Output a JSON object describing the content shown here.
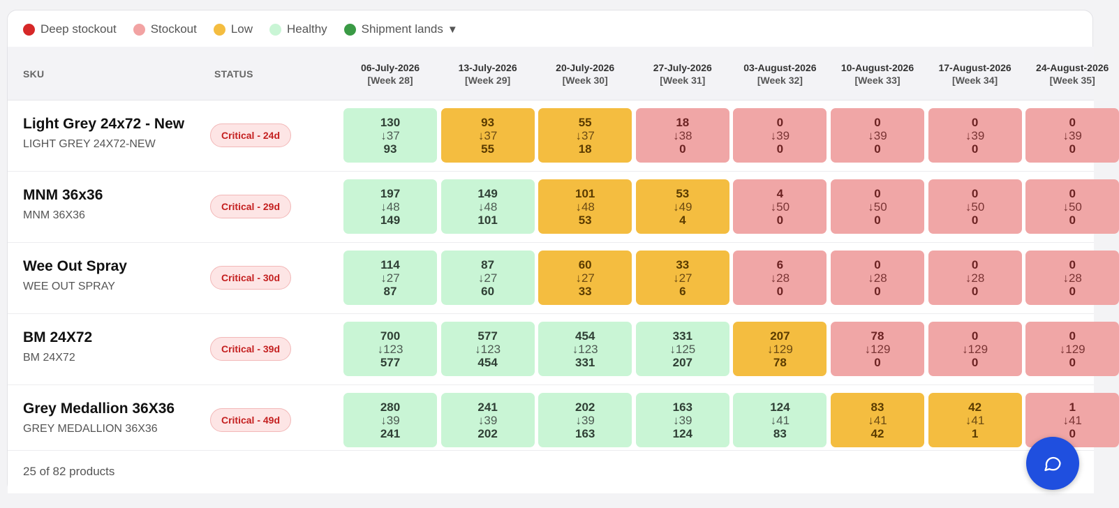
{
  "legend": [
    {
      "label": "Deep stockout",
      "color": "#d62828"
    },
    {
      "label": "Stockout",
      "color": "#f2a3a3"
    },
    {
      "label": "Low",
      "color": "#f4bd40"
    },
    {
      "label": "Healthy",
      "color": "#c9f5d5"
    },
    {
      "label": "Shipment lands",
      "color": "#3a9a45",
      "marker": "▼"
    }
  ],
  "columns": {
    "sku": "SKU",
    "status": "STATUS"
  },
  "weeks": [
    {
      "date": "06-July-2026",
      "week": "[Week 28]"
    },
    {
      "date": "13-July-2026",
      "week": "[Week 29]"
    },
    {
      "date": "20-July-2026",
      "week": "[Week 30]"
    },
    {
      "date": "27-July-2026",
      "week": "[Week 31]"
    },
    {
      "date": "03-August-2026",
      "week": "[Week 32]"
    },
    {
      "date": "10-August-2026",
      "week": "[Week 33]"
    },
    {
      "date": "17-August-2026",
      "week": "[Week 34]"
    },
    {
      "date": "24-August-2026",
      "week": "[Week 35]"
    }
  ],
  "rows": [
    {
      "title": "Light Grey 24x72 - New",
      "sub": "LIGHT GREY 24X72-NEW",
      "status": "Critical - 24d",
      "cells": [
        {
          "s": "130",
          "u": "↓37",
          "e": "93",
          "state": "healthy"
        },
        {
          "s": "93",
          "u": "↓37",
          "e": "55",
          "state": "low"
        },
        {
          "s": "55",
          "u": "↓37",
          "e": "18",
          "state": "low"
        },
        {
          "s": "18",
          "u": "↓38",
          "e": "0",
          "state": "stockout"
        },
        {
          "s": "0",
          "u": "↓39",
          "e": "0",
          "state": "stockout"
        },
        {
          "s": "0",
          "u": "↓39",
          "e": "0",
          "state": "stockout"
        },
        {
          "s": "0",
          "u": "↓39",
          "e": "0",
          "state": "stockout"
        },
        {
          "s": "0",
          "u": "↓39",
          "e": "0",
          "state": "stockout"
        }
      ]
    },
    {
      "title": "MNM 36x36",
      "sub": "MNM 36X36",
      "status": "Critical - 29d",
      "cells": [
        {
          "s": "197",
          "u": "↓48",
          "e": "149",
          "state": "healthy"
        },
        {
          "s": "149",
          "u": "↓48",
          "e": "101",
          "state": "healthy"
        },
        {
          "s": "101",
          "u": "↓48",
          "e": "53",
          "state": "low"
        },
        {
          "s": "53",
          "u": "↓49",
          "e": "4",
          "state": "low"
        },
        {
          "s": "4",
          "u": "↓50",
          "e": "0",
          "state": "stockout"
        },
        {
          "s": "0",
          "u": "↓50",
          "e": "0",
          "state": "stockout"
        },
        {
          "s": "0",
          "u": "↓50",
          "e": "0",
          "state": "stockout"
        },
        {
          "s": "0",
          "u": "↓50",
          "e": "0",
          "state": "stockout"
        }
      ]
    },
    {
      "title": "Wee Out Spray",
      "sub": "WEE OUT SPRAY",
      "status": "Critical - 30d",
      "cells": [
        {
          "s": "114",
          "u": "↓27",
          "e": "87",
          "state": "healthy"
        },
        {
          "s": "87",
          "u": "↓27",
          "e": "60",
          "state": "healthy"
        },
        {
          "s": "60",
          "u": "↓27",
          "e": "33",
          "state": "low"
        },
        {
          "s": "33",
          "u": "↓27",
          "e": "6",
          "state": "low"
        },
        {
          "s": "6",
          "u": "↓28",
          "e": "0",
          "state": "stockout"
        },
        {
          "s": "0",
          "u": "↓28",
          "e": "0",
          "state": "stockout"
        },
        {
          "s": "0",
          "u": "↓28",
          "e": "0",
          "state": "stockout"
        },
        {
          "s": "0",
          "u": "↓28",
          "e": "0",
          "state": "stockout"
        }
      ]
    },
    {
      "title": "BM 24X72",
      "sub": "BM 24X72",
      "status": "Critical - 39d",
      "cells": [
        {
          "s": "700",
          "u": "↓123",
          "e": "577",
          "state": "healthy"
        },
        {
          "s": "577",
          "u": "↓123",
          "e": "454",
          "state": "healthy"
        },
        {
          "s": "454",
          "u": "↓123",
          "e": "331",
          "state": "healthy"
        },
        {
          "s": "331",
          "u": "↓125",
          "e": "207",
          "state": "healthy"
        },
        {
          "s": "207",
          "u": "↓129",
          "e": "78",
          "state": "low"
        },
        {
          "s": "78",
          "u": "↓129",
          "e": "0",
          "state": "stockout"
        },
        {
          "s": "0",
          "u": "↓129",
          "e": "0",
          "state": "stockout"
        },
        {
          "s": "0",
          "u": "↓129",
          "e": "0",
          "state": "stockout"
        }
      ]
    },
    {
      "title": "Grey Medallion 36X36",
      "sub": "GREY MEDALLION 36X36",
      "status": "Critical - 49d",
      "cells": [
        {
          "s": "280",
          "u": "↓39",
          "e": "241",
          "state": "healthy"
        },
        {
          "s": "241",
          "u": "↓39",
          "e": "202",
          "state": "healthy"
        },
        {
          "s": "202",
          "u": "↓39",
          "e": "163",
          "state": "healthy"
        },
        {
          "s": "163",
          "u": "↓39",
          "e": "124",
          "state": "healthy"
        },
        {
          "s": "124",
          "u": "↓41",
          "e": "83",
          "state": "healthy"
        },
        {
          "s": "83",
          "u": "↓41",
          "e": "42",
          "state": "low"
        },
        {
          "s": "42",
          "u": "↓41",
          "e": "1",
          "state": "low"
        },
        {
          "s": "1",
          "u": "↓41",
          "e": "0",
          "state": "stockout"
        }
      ]
    }
  ],
  "footer": {
    "count_text": "25 of 82 products"
  },
  "chat": {
    "icon": "chat-bubble-icon",
    "color": "#1f4fdf"
  }
}
